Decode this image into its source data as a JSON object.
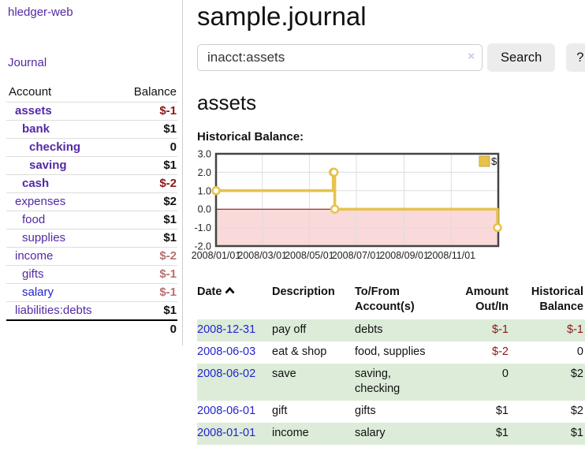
{
  "sidebar": {
    "brand": "hledger-web",
    "nav": {
      "journal": "Journal"
    },
    "accounts_table": {
      "headers": {
        "account": "Account",
        "balance": "Balance"
      },
      "rows": [
        {
          "name": "assets",
          "balance": "$-1",
          "depth": 1,
          "bold": true,
          "link_color": "purple",
          "amount_tone": "negative-strong"
        },
        {
          "name": "bank",
          "balance": "$1",
          "depth": 2,
          "bold": true,
          "link_color": "purple",
          "amount_tone": "normal"
        },
        {
          "name": "checking",
          "balance": "0",
          "depth": 3,
          "bold": true,
          "link_color": "purple",
          "amount_tone": "normal"
        },
        {
          "name": "saving",
          "balance": "$1",
          "depth": 3,
          "bold": true,
          "link_color": "purple",
          "amount_tone": "normal"
        },
        {
          "name": "cash",
          "balance": "$-2",
          "depth": 2,
          "bold": true,
          "link_color": "purple",
          "amount_tone": "negative-strong"
        },
        {
          "name": "expenses",
          "balance": "$2",
          "depth": 1,
          "bold": false,
          "link_color": "purple",
          "amount_tone": "normal"
        },
        {
          "name": "food",
          "balance": "$1",
          "depth": 2,
          "bold": false,
          "link_color": "purple",
          "amount_tone": "normal"
        },
        {
          "name": "supplies",
          "balance": "$1",
          "depth": 2,
          "bold": false,
          "link_color": "purple",
          "amount_tone": "normal"
        },
        {
          "name": "income",
          "balance": "$-2",
          "depth": 1,
          "bold": false,
          "link_color": "purple",
          "amount_tone": "negative-muted"
        },
        {
          "name": "gifts",
          "balance": "$-1",
          "depth": 2,
          "bold": false,
          "link_color": "purple",
          "amount_tone": "negative-muted"
        },
        {
          "name": "salary",
          "balance": "$-1",
          "depth": 2,
          "bold": false,
          "link_color": "blue",
          "amount_tone": "negative-muted"
        },
        {
          "name": "liabilities:debts",
          "balance": "$1",
          "depth": 1,
          "bold": false,
          "link_color": "purple",
          "amount_tone": "normal"
        }
      ],
      "total": "0"
    }
  },
  "header": {
    "title": "sample.journal"
  },
  "search": {
    "value": "inacct:assets",
    "clear_icon": "×",
    "button_label": "Search",
    "help_label": "?"
  },
  "account_page": {
    "heading": "assets"
  },
  "chart_data": {
    "type": "line",
    "title": "Historical Balance:",
    "line_style": "step-after",
    "series": [
      {
        "name": "$",
        "color": "#e7c24c",
        "points": [
          [
            "2008-01-01",
            1
          ],
          [
            "2008-06-01",
            2
          ],
          [
            "2008-06-02",
            2
          ],
          [
            "2008-06-03",
            0
          ],
          [
            "2008-12-31",
            -1
          ]
        ]
      }
    ],
    "x_domain": [
      "2008-01-01",
      "2009-01-01"
    ],
    "ylim": [
      -2,
      3
    ],
    "yticks": [
      "3.0",
      "2.0",
      "1.0",
      "0.0",
      "-1.0",
      "-2.0"
    ],
    "ytick_values": [
      3,
      2,
      1,
      0,
      -1,
      -2
    ],
    "xtick_labels": [
      "2008/01/01",
      "2008/03/01",
      "2008/05/01",
      "2008/07/01",
      "2008/09/01",
      "2008/11/01"
    ],
    "xtick_dates": [
      "2008-01-01",
      "2008-03-01",
      "2008-05-01",
      "2008-07-01",
      "2008-09-01",
      "2008-11-01"
    ],
    "legend": {
      "label": "$",
      "position": "top-right"
    },
    "grid": true,
    "negative_region_fill": "#f9d9d9",
    "zero_line_color": "#8b0000"
  },
  "register_table": {
    "headers": {
      "date": "Date",
      "description": "Description",
      "accounts": "To/From Account(s)",
      "amount": "Amount Out/In",
      "balance": "Historical Balance"
    },
    "rows": [
      {
        "date": "2008-12-31",
        "description": "pay off",
        "accounts": "debts",
        "amount": "$-1",
        "amount_tone": "negative-strong",
        "balance": "$-1",
        "balance_tone": "negative-strong",
        "shaded": true
      },
      {
        "date": "2008-06-03",
        "description": "eat & shop",
        "accounts": "food, supplies",
        "amount": "$-2",
        "amount_tone": "negative-strong",
        "balance": "0",
        "balance_tone": "normal",
        "shaded": false
      },
      {
        "date": "2008-06-02",
        "description": "save",
        "accounts": "saving,\nchecking",
        "amount": "0",
        "amount_tone": "normal",
        "balance": "$2",
        "balance_tone": "normal",
        "shaded": true
      },
      {
        "date": "2008-06-01",
        "description": "gift",
        "accounts": "gifts",
        "amount": "$1",
        "amount_tone": "normal",
        "balance": "$2",
        "balance_tone": "normal",
        "shaded": false
      },
      {
        "date": "2008-01-01",
        "description": "income",
        "accounts": "salary",
        "amount": "$1",
        "amount_tone": "normal",
        "balance": "$1",
        "balance_tone": "normal",
        "shaded": true
      }
    ]
  },
  "colors": {
    "link_purple": "#5329a5",
    "link_blue": "#2424cf",
    "negative_strong": "#8c1717",
    "negative_muted": "#b87070",
    "row_shade_green": "#dcecd9",
    "chart_line_gold": "#e7c24c",
    "chart_negative_pink": "#f9d9d9",
    "chart_zero_line_red": "#8b0000",
    "chart_border_gray": "#444444",
    "grid_gray": "#dddddd"
  }
}
